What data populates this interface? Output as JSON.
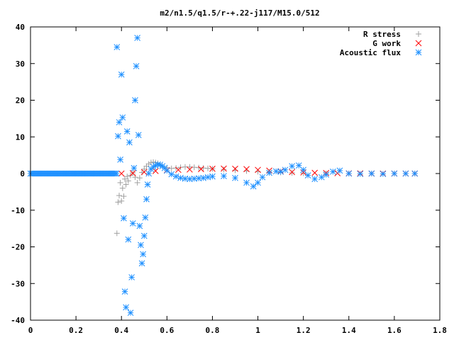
{
  "chart_data": {
    "type": "scatter",
    "title": "m2/n1.5/q1.5/r-+.22-j117/M15.0/512",
    "xlabel": "",
    "ylabel": "",
    "xlim": [
      0,
      1.8
    ],
    "ylim": [
      -40,
      40
    ],
    "x_ticks": [
      "0",
      "0.2",
      "0.4",
      "0.6",
      "0.8",
      "1",
      "1.2",
      "1.4",
      "1.6",
      "1.8"
    ],
    "y_ticks": [
      "40",
      "30",
      "20",
      "10",
      "0",
      "-10",
      "-20",
      "-30",
      "-40"
    ],
    "grid": false,
    "legend_position": "top-right",
    "series": [
      {
        "name": "R stress",
        "marker": "plus",
        "color": "#a0a0a0",
        "points": [
          [
            0.38,
            -16.3
          ],
          [
            0.385,
            -7.8
          ],
          [
            0.39,
            -6.0
          ],
          [
            0.395,
            -2.5
          ],
          [
            0.4,
            -7.5
          ],
          [
            0.405,
            -4.0
          ],
          [
            0.41,
            -6.2
          ],
          [
            0.415,
            -1.5
          ],
          [
            0.42,
            -3.0
          ],
          [
            0.425,
            -0.8
          ],
          [
            0.43,
            -2.0
          ],
          [
            0.44,
            -0.5
          ],
          [
            0.45,
            0.2
          ],
          [
            0.46,
            -1.0
          ],
          [
            0.47,
            -2.5
          ],
          [
            0.48,
            -1.2
          ],
          [
            0.49,
            0.3
          ],
          [
            0.5,
            1.2
          ],
          [
            0.51,
            2.0
          ],
          [
            0.52,
            2.6
          ],
          [
            0.53,
            3.0
          ],
          [
            0.54,
            3.1
          ],
          [
            0.55,
            3.0
          ],
          [
            0.56,
            2.8
          ],
          [
            0.57,
            2.4
          ],
          [
            0.58,
            2.0
          ],
          [
            0.6,
            1.6
          ],
          [
            0.62,
            1.4
          ],
          [
            0.64,
            1.5
          ],
          [
            0.66,
            1.7
          ],
          [
            0.68,
            1.8
          ],
          [
            0.7,
            1.8
          ],
          [
            0.72,
            1.7
          ],
          [
            0.74,
            1.6
          ],
          [
            0.76,
            1.5
          ],
          [
            0.78,
            1.4
          ],
          [
            0.8,
            1.3
          ],
          [
            0.85,
            1.1
          ],
          [
            0.9,
            0.9
          ],
          [
            0.95,
            0.7
          ],
          [
            1.0,
            0.5
          ],
          [
            1.05,
            0.4
          ],
          [
            1.1,
            0.3
          ],
          [
            1.15,
            0.2
          ],
          [
            1.2,
            0.1
          ],
          [
            1.3,
            0.05
          ],
          [
            1.4,
            0.0
          ],
          [
            1.5,
            0.0
          ],
          [
            1.6,
            0.0
          ],
          [
            1.69,
            0.0
          ]
        ]
      },
      {
        "name": "G work",
        "marker": "cross",
        "color": "#ff0000",
        "points": [
          [
            0.4,
            0.0
          ],
          [
            0.45,
            0.1
          ],
          [
            0.5,
            0.4
          ],
          [
            0.55,
            0.7
          ],
          [
            0.6,
            0.9
          ],
          [
            0.65,
            1.0
          ],
          [
            0.7,
            1.1
          ],
          [
            0.75,
            1.2
          ],
          [
            0.8,
            1.3
          ],
          [
            0.85,
            1.35
          ],
          [
            0.9,
            1.3
          ],
          [
            0.95,
            1.2
          ],
          [
            1.0,
            1.0
          ],
          [
            1.05,
            0.8
          ],
          [
            1.1,
            0.6
          ],
          [
            1.15,
            0.4
          ],
          [
            1.2,
            0.3
          ],
          [
            1.25,
            0.2
          ],
          [
            1.3,
            0.15
          ],
          [
            1.35,
            0.1
          ],
          [
            1.4,
            0.05
          ],
          [
            1.45,
            0.05
          ],
          [
            1.5,
            0.0
          ],
          [
            1.55,
            0.0
          ],
          [
            1.6,
            0.0
          ],
          [
            1.65,
            0.0
          ],
          [
            1.69,
            0.0
          ]
        ]
      },
      {
        "name": "Acoustic flux",
        "marker": "star",
        "color": "#1e90ff",
        "points": [
          [
            0.38,
            34.5
          ],
          [
            0.385,
            10.2
          ],
          [
            0.39,
            14.0
          ],
          [
            0.395,
            3.8
          ],
          [
            0.4,
            27.0
          ],
          [
            0.405,
            15.3
          ],
          [
            0.41,
            -12.2
          ],
          [
            0.415,
            -32.2
          ],
          [
            0.42,
            -36.5
          ],
          [
            0.425,
            11.5
          ],
          [
            0.43,
            -18.0
          ],
          [
            0.435,
            8.5
          ],
          [
            0.44,
            -38.0
          ],
          [
            0.445,
            -28.3
          ],
          [
            0.45,
            -13.6
          ],
          [
            0.455,
            1.5
          ],
          [
            0.46,
            20.0
          ],
          [
            0.465,
            29.3
          ],
          [
            0.47,
            37.0
          ],
          [
            0.475,
            10.5
          ],
          [
            0.48,
            -14.3
          ],
          [
            0.485,
            -19.5
          ],
          [
            0.49,
            -24.5
          ],
          [
            0.495,
            -22.0
          ],
          [
            0.5,
            -17.0
          ],
          [
            0.505,
            -12.0
          ],
          [
            0.51,
            -7.0
          ],
          [
            0.515,
            -3.0
          ],
          [
            0.52,
            0.0
          ],
          [
            0.53,
            1.2
          ],
          [
            0.54,
            1.8
          ],
          [
            0.55,
            2.2
          ],
          [
            0.56,
            2.5
          ],
          [
            0.57,
            2.4
          ],
          [
            0.58,
            2.0
          ],
          [
            0.59,
            1.5
          ],
          [
            0.6,
            0.8
          ],
          [
            0.62,
            -0.2
          ],
          [
            0.64,
            -0.8
          ],
          [
            0.66,
            -1.2
          ],
          [
            0.68,
            -1.4
          ],
          [
            0.7,
            -1.5
          ],
          [
            0.72,
            -1.4
          ],
          [
            0.74,
            -1.3
          ],
          [
            0.76,
            -1.2
          ],
          [
            0.78,
            -1.0
          ],
          [
            0.8,
            -0.8
          ],
          [
            0.85,
            -0.7
          ],
          [
            0.9,
            -1.2
          ],
          [
            0.95,
            -2.5
          ],
          [
            0.98,
            -3.5
          ],
          [
            1.0,
            -2.5
          ],
          [
            1.02,
            -1.0
          ],
          [
            1.05,
            0.2
          ],
          [
            1.08,
            0.6
          ],
          [
            1.1,
            0.5
          ],
          [
            1.12,
            1.0
          ],
          [
            1.15,
            2.0
          ],
          [
            1.18,
            2.2
          ],
          [
            1.2,
            1.0
          ],
          [
            1.22,
            -0.5
          ],
          [
            1.25,
            -1.5
          ],
          [
            1.28,
            -1.0
          ],
          [
            1.3,
            -0.3
          ],
          [
            1.33,
            0.5
          ],
          [
            1.36,
            0.8
          ],
          [
            1.4,
            0.0
          ],
          [
            1.45,
            -0.1
          ],
          [
            1.5,
            0.0
          ],
          [
            1.55,
            -0.1
          ],
          [
            1.6,
            0.0
          ],
          [
            1.65,
            0.0
          ],
          [
            1.69,
            0.0
          ]
        ]
      }
    ]
  }
}
